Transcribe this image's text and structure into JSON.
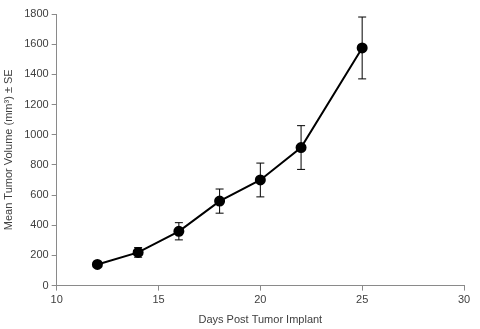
{
  "chart_data": {
    "type": "line",
    "x_label": "Days Post Tumor Implant",
    "y_label": "Mean Tumor Volume (mm³) ± SE",
    "x": [
      12,
      14,
      16,
      18,
      20,
      22,
      25
    ],
    "values": [
      140,
      220,
      360,
      560,
      700,
      915,
      1575
    ],
    "errors": [
      15,
      32,
      57,
      80,
      112,
      145,
      205
    ],
    "color": "#000000",
    "marker": "circle",
    "line_style": "solid",
    "xlim": [
      10,
      30
    ],
    "xticks": [
      10,
      15,
      20,
      25,
      30
    ],
    "ylim": [
      0,
      1800
    ],
    "yticks": [
      0,
      200,
      400,
      600,
      800,
      1000,
      1200,
      1400,
      1600,
      1800
    ],
    "grid": false
  }
}
